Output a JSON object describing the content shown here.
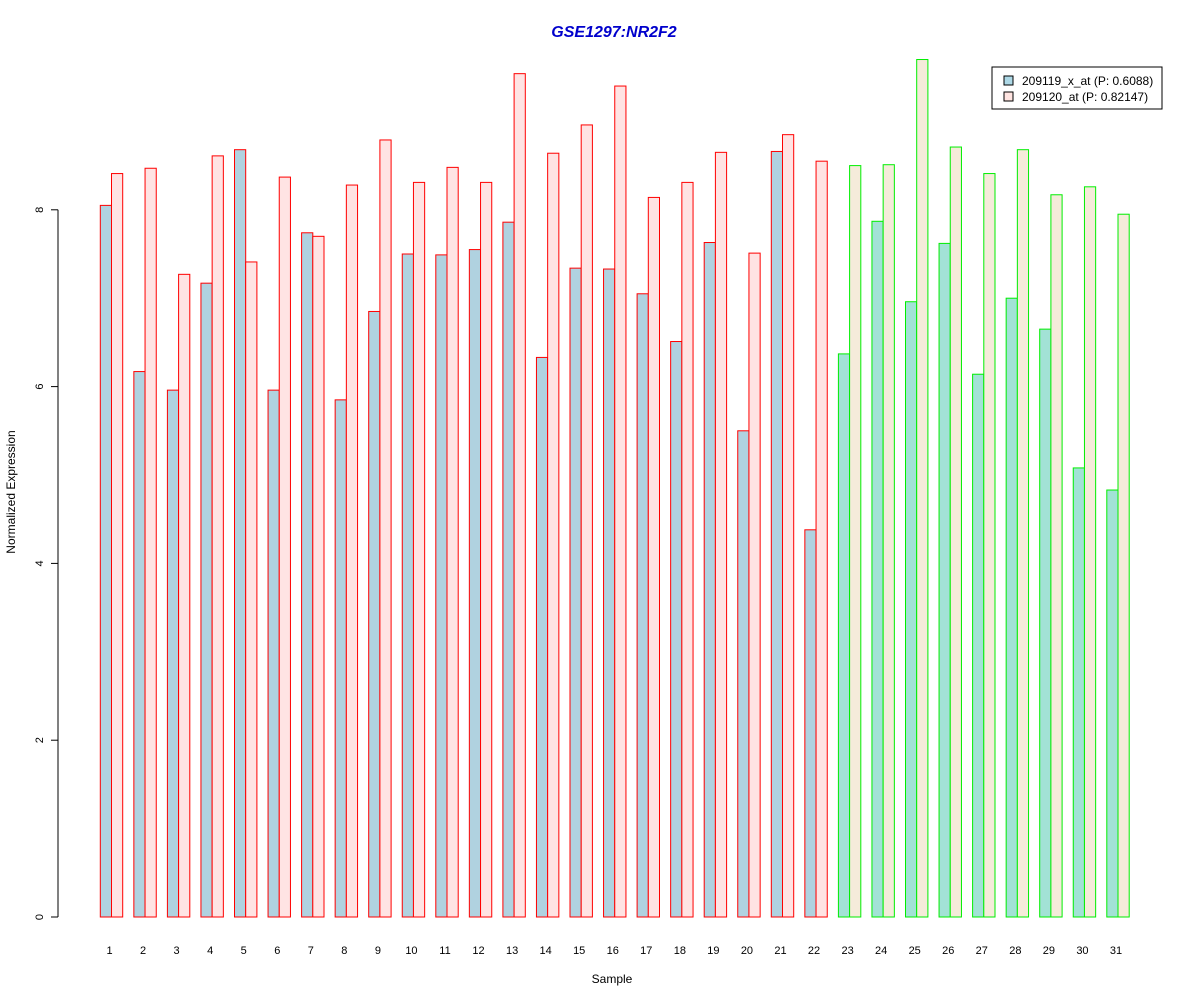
{
  "chart_data": {
    "type": "bar",
    "title": "GSE1297:NR2F2",
    "xlabel": "Sample",
    "ylabel": "Normalized Expression",
    "ylim": [
      0,
      9.7
    ],
    "y_ticks": [
      0,
      2,
      4,
      6,
      8
    ],
    "categories": [
      "1",
      "2",
      "3",
      "4",
      "5",
      "6",
      "7",
      "8",
      "9",
      "10",
      "11",
      "12",
      "13",
      "14",
      "15",
      "16",
      "17",
      "18",
      "19",
      "20",
      "21",
      "22",
      "23",
      "24",
      "25",
      "26",
      "27",
      "28",
      "29",
      "30",
      "31"
    ],
    "series": [
      {
        "name": "209119_x_at (P: 0.6088)",
        "values": [
          8.05,
          6.17,
          5.96,
          7.17,
          8.68,
          5.96,
          7.74,
          5.85,
          6.85,
          7.5,
          7.49,
          7.55,
          7.86,
          6.33,
          7.34,
          7.33,
          7.05,
          6.51,
          7.63,
          5.5,
          8.66,
          4.38,
          6.37,
          7.87,
          6.96,
          7.62,
          6.14,
          7.0,
          6.65,
          5.08,
          4.83
        ]
      },
      {
        "name": "209120_at (P: 0.82147)",
        "values": [
          8.41,
          8.47,
          7.27,
          8.61,
          7.41,
          8.37,
          7.7,
          8.28,
          8.79,
          8.31,
          8.48,
          8.31,
          9.54,
          8.64,
          8.96,
          9.4,
          8.14,
          8.31,
          8.65,
          7.51,
          8.85,
          8.55,
          8.5,
          8.51,
          9.7,
          8.71,
          8.41,
          8.68,
          8.17,
          8.26,
          7.95
        ]
      }
    ],
    "group_colors": {
      "group_1_samples": "1-22",
      "group_1_border": "#ff0000",
      "group_2_border": "#00ee00",
      "series1_fill_group1": "#b0d2e0",
      "series2_fill_group1": "#ffe3e3",
      "series1_fill_group2": "#a2e2d6",
      "series2_fill_group2": "#f5ebda"
    },
    "legend_position": "top-right",
    "grid": false
  },
  "colors": {
    "title": "#0000cc",
    "legend_swatch_1": "#add8e6",
    "legend_swatch_2": "#ffe4e1"
  }
}
